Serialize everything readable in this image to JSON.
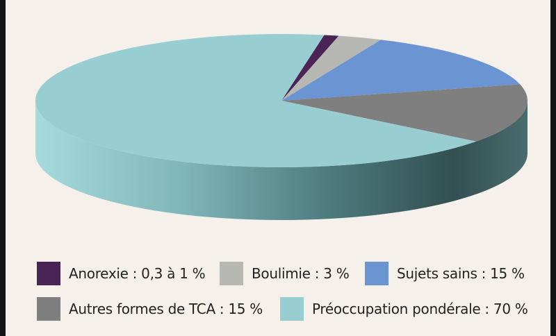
{
  "chart_data": {
    "type": "pie",
    "title": "",
    "slices": [
      {
        "label": "Anorexie : 0,3 à 1 %",
        "value": 1,
        "color": "#4a2454"
      },
      {
        "label": "Boulimie : 3 %",
        "value": 3,
        "color": "#b7b7b4"
      },
      {
        "label": "Sujets sains : 15 %",
        "value": 15,
        "color": "#6a95d2"
      },
      {
        "label": "Autres formes de TCA : 15 %",
        "value": 15,
        "color": "#7f7f7f"
      },
      {
        "label": "Préoccupation pondérale : 70 %",
        "value": 70,
        "color": "#98cdd1"
      }
    ],
    "legend_position": "bottom"
  }
}
